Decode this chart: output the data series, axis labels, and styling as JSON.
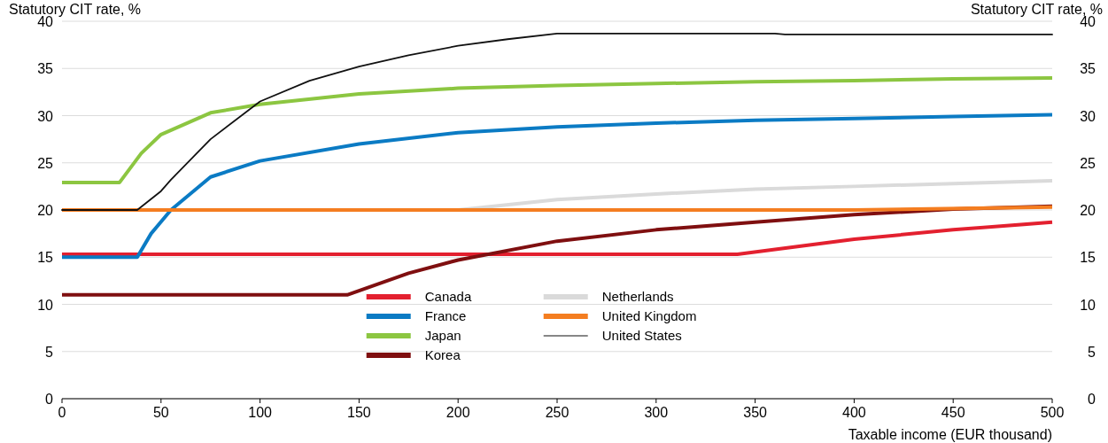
{
  "chart_data": {
    "type": "line",
    "xlabel": "Taxable income (EUR thousand)",
    "ylabel": "Statutory CIT rate, %",
    "y2label": "Statutory CIT rate, %",
    "xlim": [
      0,
      500
    ],
    "xticks": [
      0,
      50,
      100,
      150,
      200,
      250,
      300,
      350,
      400,
      450,
      500
    ],
    "ylim": [
      0,
      40
    ],
    "yticks": [
      0,
      5,
      10,
      15,
      20,
      25,
      30,
      35,
      40
    ],
    "y2lim": [
      0,
      40
    ],
    "y2ticks": [
      0,
      5,
      10,
      15,
      20,
      25,
      30,
      35,
      40
    ],
    "grid": "y",
    "legend": "bottom",
    "marker": "none",
    "line_style": "solid",
    "series": [
      {
        "name": "Canada",
        "color": "#e3202f",
        "x": [
          0,
          341,
          400,
          450,
          500
        ],
        "values": [
          15.3,
          15.3,
          16.9,
          17.9,
          18.7
        ]
      },
      {
        "name": "France",
        "color": "#0b7bc4",
        "x": [
          0,
          38,
          45,
          55,
          75,
          100,
          150,
          200,
          250,
          300,
          350,
          400,
          450,
          500
        ],
        "values": [
          15,
          15,
          17.5,
          20,
          23.5,
          25.2,
          27,
          28.2,
          28.8,
          29.2,
          29.5,
          29.7,
          29.9,
          30.1
        ]
      },
      {
        "name": "Japan",
        "color": "#8cc641",
        "x": [
          0,
          29,
          40,
          50,
          75,
          100,
          150,
          200,
          250,
          300,
          350,
          400,
          450,
          500
        ],
        "values": [
          22.9,
          22.9,
          26,
          28,
          30.3,
          31.2,
          32.3,
          32.9,
          33.2,
          33.4,
          33.6,
          33.7,
          33.9,
          34
        ]
      },
      {
        "name": "Korea",
        "color": "#7f0f10",
        "x": [
          0,
          144,
          175,
          200,
          250,
          300,
          350,
          400,
          450,
          500
        ],
        "values": [
          11,
          11,
          13.3,
          14.7,
          16.7,
          17.9,
          18.7,
          19.5,
          20.1,
          20.4
        ]
      },
      {
        "name": "Netherlands",
        "color": "#dadada",
        "x": [
          0,
          200,
          250,
          300,
          350,
          400,
          450,
          500
        ],
        "values": [
          20,
          20,
          21.1,
          21.7,
          22.2,
          22.5,
          22.8,
          23.1
        ]
      },
      {
        "name": "United Kingdom",
        "color": "#f47d20",
        "x": [
          0,
          400,
          500
        ],
        "values": [
          20,
          20,
          20.3
        ]
      },
      {
        "name": "United States",
        "color": "#111111",
        "x": [
          0,
          38,
          50,
          55,
          75,
          100,
          125,
          150,
          175,
          200,
          225,
          250,
          360,
          365,
          500
        ],
        "values": [
          20,
          20,
          22,
          23.2,
          27.5,
          31.5,
          33.7,
          35.2,
          36.4,
          37.4,
          38.1,
          38.7,
          38.7,
          38.6,
          38.6
        ]
      }
    ]
  }
}
